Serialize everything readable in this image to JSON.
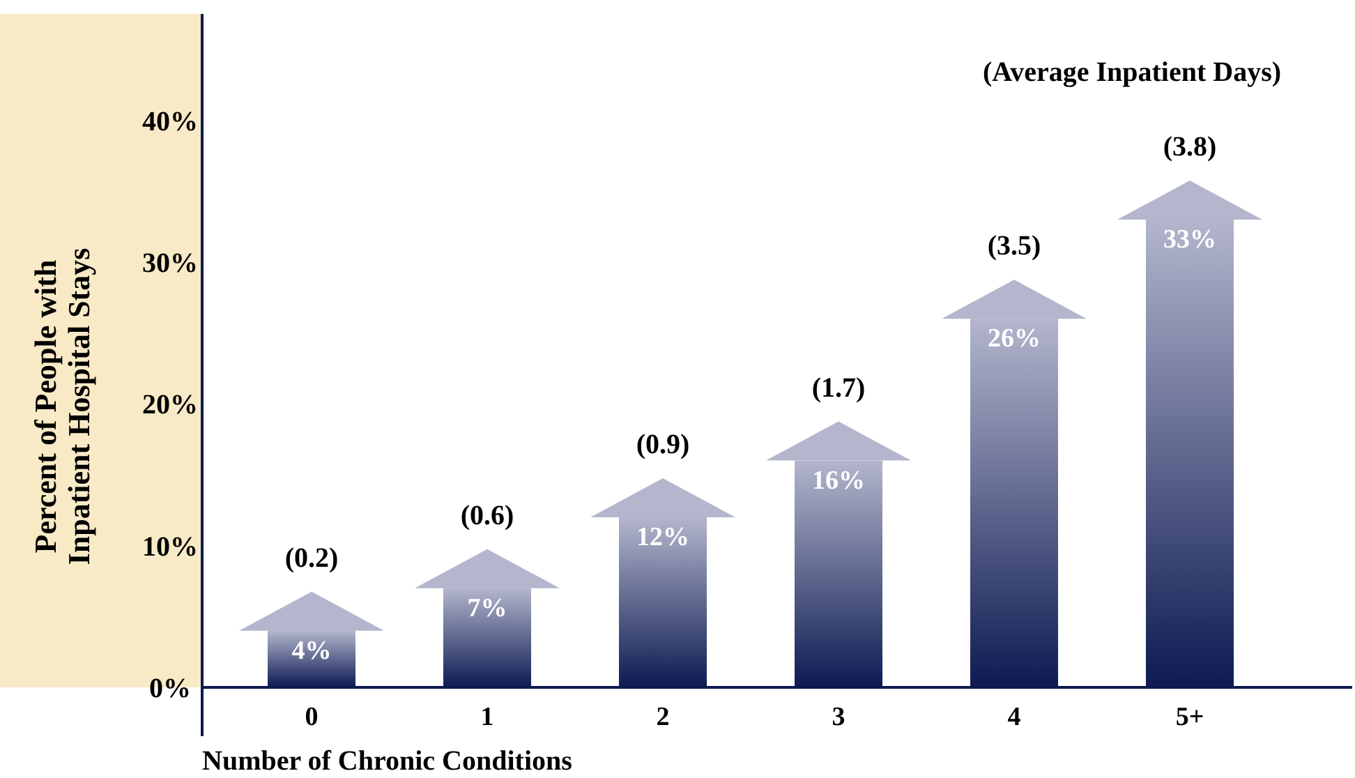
{
  "chart_data": {
    "type": "bar",
    "xlabel": "Number of Chronic Conditions",
    "ylabel": "Percent of People with\nInpatient Hospital Stays",
    "categories": [
      "0",
      "1",
      "2",
      "3",
      "4",
      "5+"
    ],
    "values": [
      4,
      7,
      12,
      16,
      26,
      33
    ],
    "value_labels": [
      "4%",
      "7%",
      "12%",
      "16%",
      "26%",
      "33%"
    ],
    "color": "#0d1a52",
    "ylim": [
      0,
      47.5
    ],
    "yticks": [
      {
        "value": 0,
        "label": "0%"
      },
      {
        "value": 10,
        "label": "10%"
      },
      {
        "value": 20,
        "label": "20%"
      },
      {
        "value": 30,
        "label": "30%"
      },
      {
        "value": 40,
        "label": "40%"
      }
    ],
    "grid": false,
    "annotations": [
      "(Average Inpatient Days)",
      {
        "text": "(0.2)",
        "x": "0",
        "y": 4
      },
      {
        "text": "(0.6)",
        "x": "1",
        "y": 7
      },
      {
        "text": "(0.9)",
        "x": "2",
        "y": 12
      },
      {
        "text": "(1.7)",
        "x": "3",
        "y": 16
      },
      {
        "text": "(3.5)",
        "x": "4",
        "y": 26
      },
      {
        "text": "(3.8)",
        "x": "5+",
        "y": 33
      }
    ]
  }
}
